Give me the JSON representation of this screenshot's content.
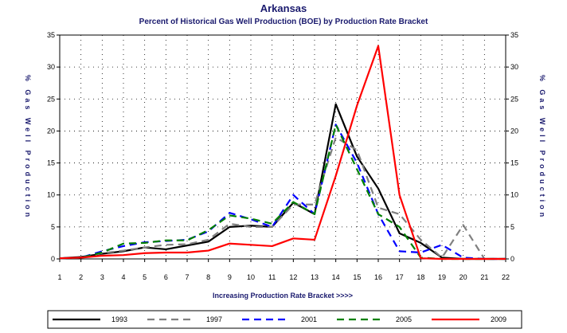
{
  "chart_data": {
    "type": "line",
    "title": "Arkansas",
    "subtitle": "Percent of Historical Gas Well Production (BOE) by Production Rate Bracket",
    "xlabel": "Increasing Production Rate Bracket >>>>",
    "ylabel": "% Gas Well Production",
    "x": [
      1,
      2,
      3,
      4,
      5,
      6,
      7,
      8,
      9,
      10,
      11,
      12,
      13,
      14,
      15,
      16,
      17,
      18,
      19,
      20,
      21,
      22
    ],
    "xlim": [
      1,
      22
    ],
    "ylim": [
      0,
      35
    ],
    "yticks": [
      0,
      5,
      10,
      15,
      20,
      25,
      30,
      35
    ],
    "grid": true,
    "legend_position": "bottom",
    "series": [
      {
        "name": "1993",
        "color": "#000000",
        "dash": "solid",
        "values": [
          0.1,
          0.3,
          0.8,
          1.2,
          1.8,
          1.5,
          2.1,
          2.7,
          5.0,
          5.2,
          5.0,
          8.8,
          7.0,
          24.2,
          16.0,
          11.0,
          4.0,
          2.5,
          0.2,
          0,
          0,
          0
        ]
      },
      {
        "name": "1997",
        "color": "#808080",
        "dash": "dash",
        "values": [
          0.1,
          0.2,
          0.9,
          1.3,
          1.8,
          2.2,
          2.3,
          3.0,
          5.5,
          5.0,
          5.0,
          8.5,
          8.5,
          19.0,
          17.0,
          8.0,
          7.0,
          3.0,
          0.2,
          5.3,
          0,
          0
        ]
      },
      {
        "name": "2001",
        "color": "#0000ff",
        "dash": "dash",
        "values": [
          0.1,
          0.2,
          1.2,
          2.0,
          2.6,
          2.8,
          3.0,
          4.3,
          7.2,
          6.2,
          5.0,
          10.0,
          7.0,
          21.0,
          15.0,
          7.0,
          1.2,
          1.0,
          2.2,
          0.2,
          0,
          0
        ]
      },
      {
        "name": "2005",
        "color": "#008000",
        "dash": "dash",
        "values": [
          0.1,
          0.2,
          1.0,
          2.4,
          2.5,
          2.9,
          2.9,
          4.5,
          6.8,
          6.3,
          5.5,
          8.9,
          7.0,
          21.0,
          14.0,
          7.0,
          5.0,
          0.2,
          0,
          0,
          0,
          0
        ]
      },
      {
        "name": "2009",
        "color": "#ff0000",
        "dash": "solid",
        "values": [
          0.1,
          0.2,
          0.5,
          0.6,
          0.9,
          1.0,
          1.0,
          1.3,
          2.4,
          2.2,
          2.0,
          3.2,
          3.0,
          13.0,
          24.0,
          33.3,
          10.0,
          0.1,
          0,
          0,
          0,
          0
        ]
      }
    ]
  }
}
